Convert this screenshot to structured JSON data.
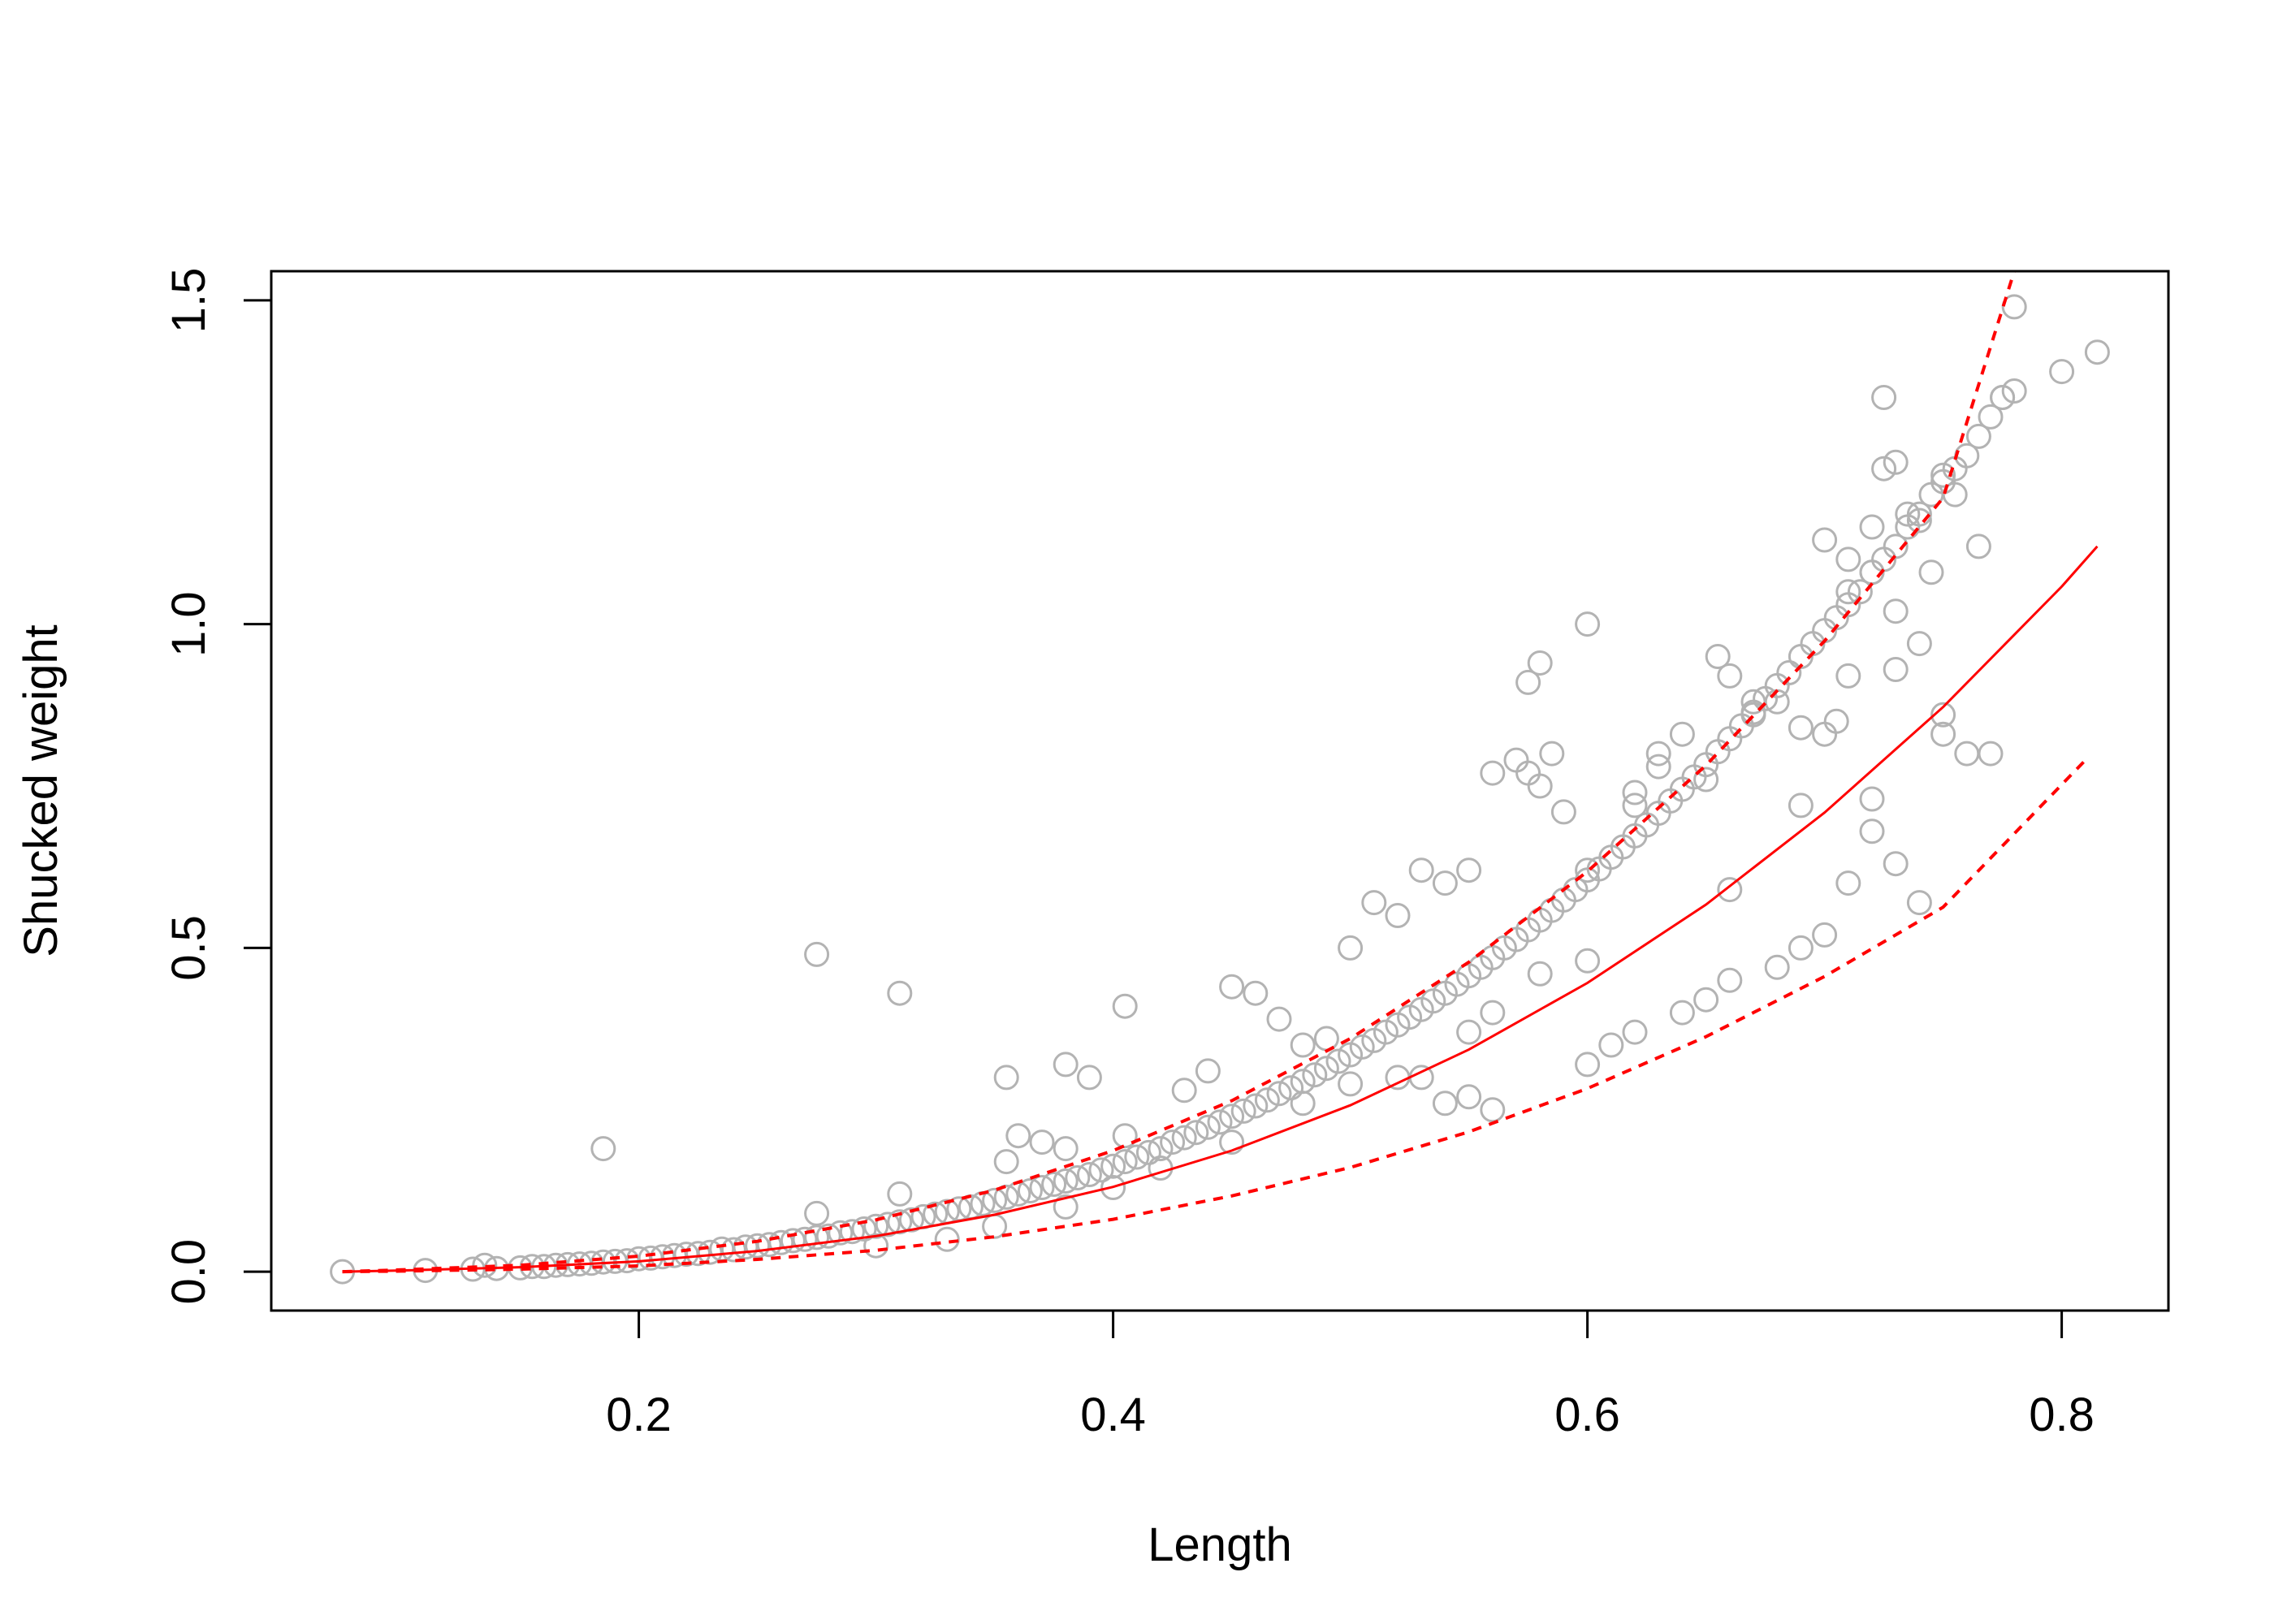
{
  "chart_data": {
    "type": "scatter",
    "title": "",
    "xlabel": "Length",
    "ylabel": "Shucked weight",
    "xlim": [
      0.045,
      0.845
    ],
    "ylim": [
      -0.06,
      1.545
    ],
    "x_ticks": [
      0.2,
      0.4,
      0.6,
      0.8
    ],
    "x_tick_labels": [
      "0.2",
      "0.4",
      "0.6",
      "0.8"
    ],
    "y_ticks": [
      0.0,
      0.5,
      1.0,
      1.5
    ],
    "y_tick_labels": [
      "0.0",
      "0.5",
      "1.0",
      "1.5"
    ],
    "grid": false,
    "legend": null,
    "colors": {
      "points": "#b3b3b3",
      "fit": "#ff0000",
      "axes": "#000000"
    },
    "series": [
      {
        "kind": "points",
        "x": [
          0.075,
          0.11,
          0.13,
          0.135,
          0.14,
          0.15,
          0.155,
          0.16,
          0.165,
          0.17,
          0.175,
          0.18,
          0.185,
          0.19,
          0.195,
          0.2,
          0.205,
          0.21,
          0.215,
          0.22,
          0.225,
          0.23,
          0.235,
          0.24,
          0.245,
          0.25,
          0.255,
          0.26,
          0.265,
          0.27,
          0.275,
          0.275,
          0.28,
          0.285,
          0.29,
          0.295,
          0.3,
          0.305,
          0.31,
          0.31,
          0.315,
          0.32,
          0.325,
          0.33,
          0.335,
          0.34,
          0.345,
          0.35,
          0.355,
          0.355,
          0.36,
          0.365,
          0.37,
          0.375,
          0.38,
          0.38,
          0.385,
          0.39,
          0.395,
          0.4,
          0.405,
          0.405,
          0.41,
          0.415,
          0.42,
          0.425,
          0.43,
          0.435,
          0.44,
          0.445,
          0.45,
          0.455,
          0.46,
          0.465,
          0.47,
          0.475,
          0.48,
          0.485,
          0.49,
          0.495,
          0.5,
          0.505,
          0.51,
          0.515,
          0.52,
          0.525,
          0.53,
          0.535,
          0.54,
          0.545,
          0.55,
          0.555,
          0.56,
          0.565,
          0.57,
          0.575,
          0.58,
          0.585,
          0.59,
          0.595,
          0.6,
          0.6,
          0.605,
          0.61,
          0.615,
          0.62,
          0.625,
          0.63,
          0.635,
          0.64,
          0.645,
          0.65,
          0.655,
          0.66,
          0.665,
          0.67,
          0.675,
          0.68,
          0.685,
          0.69,
          0.695,
          0.7,
          0.705,
          0.71,
          0.715,
          0.72,
          0.725,
          0.73,
          0.735,
          0.74,
          0.745,
          0.75,
          0.755,
          0.76,
          0.765,
          0.77,
          0.775,
          0.78,
          0.8,
          0.815,
          0.185,
          0.275,
          0.31,
          0.405,
          0.355,
          0.38,
          0.39,
          0.575,
          0.58,
          0.6,
          0.56,
          0.725,
          0.73,
          0.75,
          0.775,
          0.725,
          0.78,
          0.735,
          0.7,
          0.71,
          0.72,
          0.74,
          0.745,
          0.755,
          0.765,
          0.57,
          0.575,
          0.585,
          0.58,
          0.59,
          0.62,
          0.63,
          0.65,
          0.655,
          0.66,
          0.67,
          0.68,
          0.69,
          0.7,
          0.705,
          0.71,
          0.72,
          0.73,
          0.74,
          0.75,
          0.76,
          0.77,
          0.72,
          0.73,
          0.71,
          0.74,
          0.5,
          0.51,
          0.52,
          0.53,
          0.54,
          0.55,
          0.45,
          0.46,
          0.47,
          0.48,
          0.49,
          0.43,
          0.44,
          0.37,
          0.36,
          0.53,
          0.54,
          0.55,
          0.56,
          0.6,
          0.61,
          0.62,
          0.64,
          0.65,
          0.66,
          0.68,
          0.69,
          0.7,
          0.62,
          0.63,
          0.64,
          0.67,
          0.71,
          0.73,
          0.75,
          0.69,
          0.72,
          0.66,
          0.6,
          0.58,
          0.56,
          0.55,
          0.52,
          0.5,
          0.48,
          0.45,
          0.42,
          0.4,
          0.38,
          0.35,
          0.33,
          0.3
        ],
        "y": [
          0.0,
          0.002,
          0.004,
          0.01,
          0.005,
          0.006,
          0.008,
          0.008,
          0.01,
          0.011,
          0.012,
          0.013,
          0.015,
          0.016,
          0.017,
          0.02,
          0.021,
          0.023,
          0.025,
          0.027,
          0.028,
          0.03,
          0.035,
          0.034,
          0.038,
          0.04,
          0.042,
          0.045,
          0.048,
          0.05,
          0.053,
          0.09,
          0.055,
          0.06,
          0.062,
          0.066,
          0.07,
          0.073,
          0.077,
          0.12,
          0.08,
          0.085,
          0.089,
          0.093,
          0.097,
          0.1,
          0.105,
          0.11,
          0.115,
          0.17,
          0.12,
          0.125,
          0.13,
          0.135,
          0.14,
          0.19,
          0.145,
          0.15,
          0.157,
          0.163,
          0.17,
          0.21,
          0.177,
          0.184,
          0.19,
          0.2,
          0.207,
          0.215,
          0.223,
          0.231,
          0.24,
          0.248,
          0.256,
          0.265,
          0.275,
          0.284,
          0.294,
          0.304,
          0.314,
          0.325,
          0.335,
          0.347,
          0.357,
          0.37,
          0.381,
          0.393,
          0.405,
          0.418,
          0.43,
          0.444,
          0.457,
          0.47,
          0.485,
          0.5,
          0.513,
          0.528,
          0.543,
          0.558,
          0.574,
          0.59,
          0.605,
          0.62,
          0.622,
          0.64,
          0.656,
          0.673,
          0.69,
          0.708,
          0.727,
          0.745,
          0.764,
          0.783,
          0.803,
          0.823,
          0.843,
          0.864,
          0.885,
          0.905,
          0.925,
          0.95,
          0.97,
          0.99,
          1.01,
          1.03,
          1.05,
          1.08,
          1.1,
          1.12,
          1.15,
          1.17,
          1.2,
          1.22,
          1.24,
          1.26,
          1.29,
          1.32,
          1.35,
          1.36,
          1.39,
          1.42,
          0.19,
          0.49,
          0.43,
          0.41,
          0.3,
          0.32,
          0.3,
          0.91,
          0.94,
          1.0,
          0.77,
          1.35,
          1.25,
          1.23,
          1.35,
          1.24,
          1.49,
          1.17,
          1.13,
          1.1,
          1.15,
          1.16,
          1.08,
          1.2,
          1.12,
          0.79,
          0.77,
          0.8,
          0.75,
          0.71,
          0.72,
          0.8,
          0.76,
          0.95,
          0.92,
          0.86,
          0.88,
          0.84,
          0.83,
          0.85,
          1.05,
          1.08,
          1.02,
          0.97,
          0.83,
          0.8,
          0.8,
          0.73,
          0.63,
          0.6,
          0.57,
          0.5,
          0.57,
          0.55,
          0.62,
          0.6,
          0.62,
          0.44,
          0.43,
          0.39,
          0.35,
          0.36,
          0.28,
          0.31,
          0.2,
          0.21,
          0.3,
          0.26,
          0.27,
          0.25,
          0.32,
          0.35,
          0.37,
          0.4,
          0.42,
          0.45,
          0.47,
          0.5,
          0.52,
          0.74,
          0.78,
          0.83,
          0.88,
          0.92,
          0.93,
          0.86,
          0.72,
          0.68,
          0.59,
          0.48,
          0.46,
          0.4,
          0.37,
          0.3,
          0.29,
          0.26,
          0.2,
          0.16,
          0.13,
          0.1,
          0.07,
          0.05,
          0.04
        ]
      },
      {
        "kind": "fit",
        "name": "",
        "line_style": "solid",
        "x": [
          0.075,
          0.1,
          0.15,
          0.2,
          0.25,
          0.3,
          0.35,
          0.4,
          0.45,
          0.5,
          0.55,
          0.6,
          0.65,
          0.7,
          0.75,
          0.8,
          0.815
        ],
        "y": [
          0.0,
          0.002,
          0.007,
          0.016,
          0.032,
          0.055,
          0.088,
          0.131,
          0.187,
          0.257,
          0.343,
          0.446,
          0.567,
          0.709,
          0.872,
          1.058,
          1.12
        ]
      },
      {
        "kind": "upper-band",
        "name": "",
        "line_style": "dashed",
        "x": [
          0.075,
          0.1,
          0.15,
          0.2,
          0.25,
          0.3,
          0.35,
          0.4,
          0.45,
          0.5,
          0.55,
          0.6,
          0.65,
          0.7,
          0.75,
          0.78
        ],
        "y": [
          0.0,
          0.003,
          0.01,
          0.024,
          0.047,
          0.08,
          0.126,
          0.187,
          0.264,
          0.36,
          0.478,
          0.618,
          0.782,
          0.974,
          1.195,
          1.545
        ]
      },
      {
        "kind": "lower-band",
        "name": "",
        "line_style": "dashed",
        "x": [
          0.075,
          0.1,
          0.15,
          0.2,
          0.25,
          0.3,
          0.35,
          0.4,
          0.45,
          0.5,
          0.55,
          0.6,
          0.65,
          0.7,
          0.75,
          0.81
        ],
        "y": [
          0.0,
          0.001,
          0.004,
          0.009,
          0.019,
          0.033,
          0.054,
          0.081,
          0.117,
          0.161,
          0.216,
          0.283,
          0.363,
          0.456,
          0.563,
          0.79
        ]
      }
    ]
  }
}
